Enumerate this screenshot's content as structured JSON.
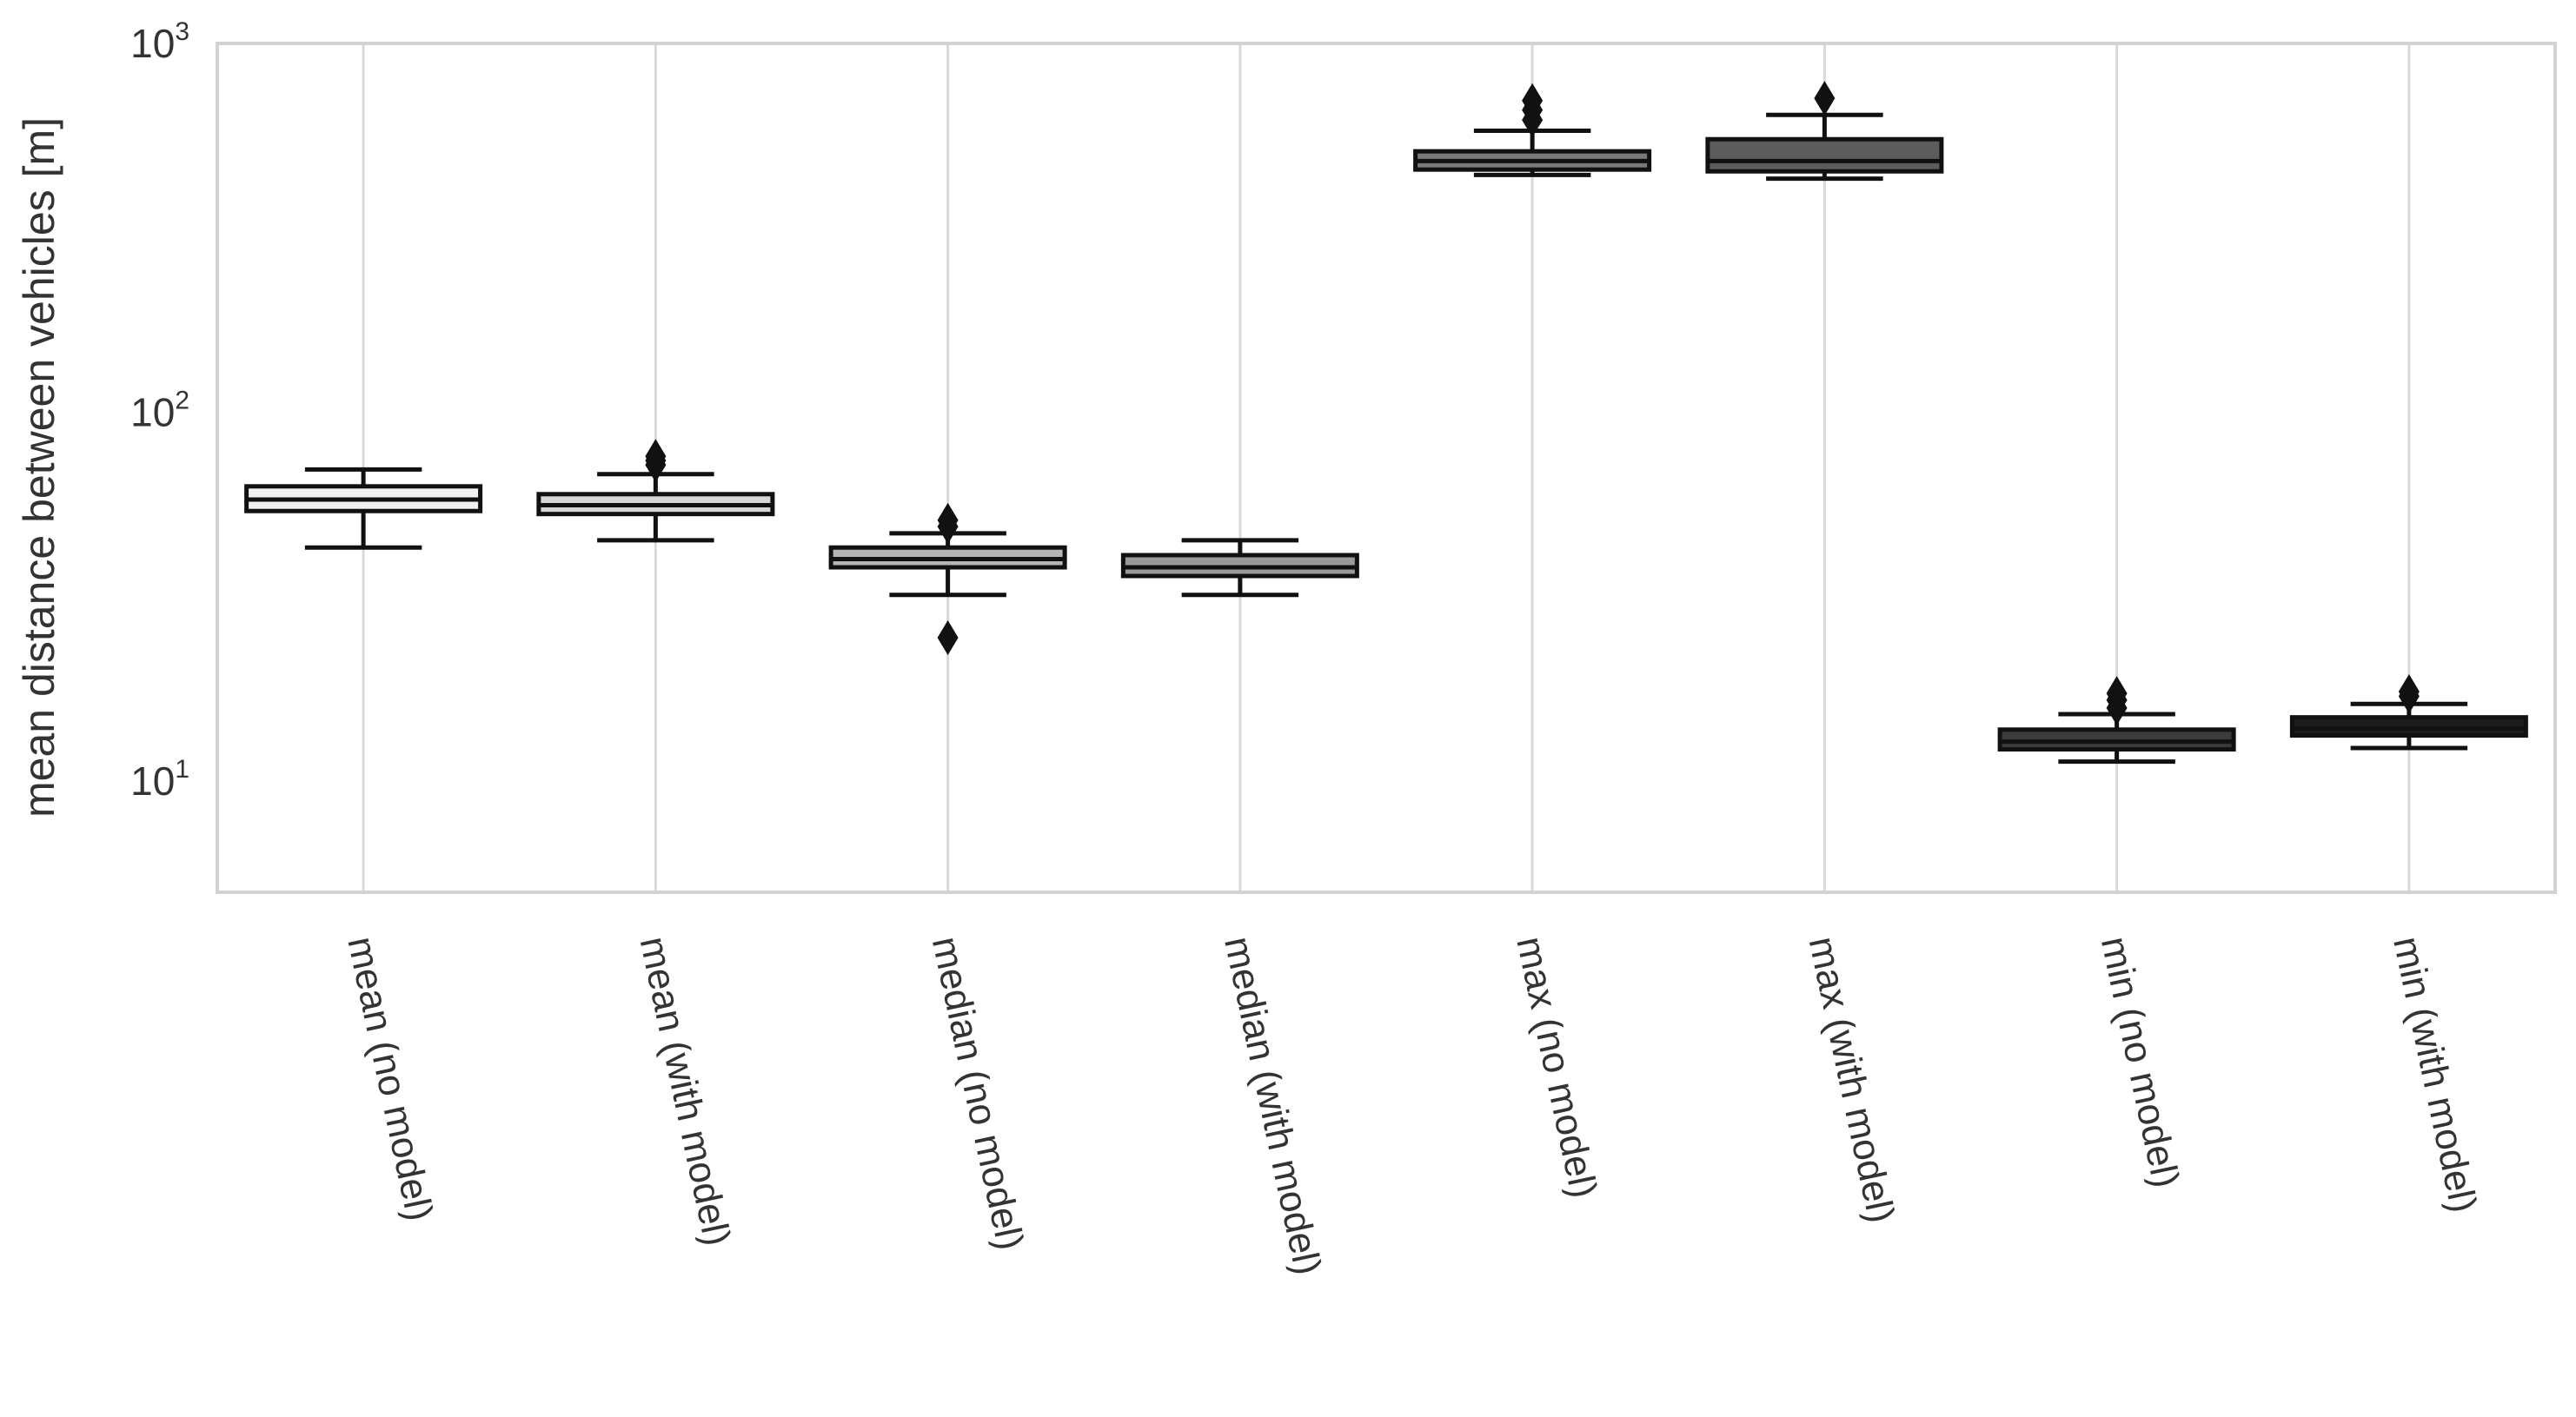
{
  "chart_data": {
    "type": "box",
    "title": "",
    "xlabel": "",
    "ylabel": "mean distance between vehicles [m]",
    "yscale": "log",
    "ylim": [
      5,
      1000
    ],
    "yticks": [
      {
        "value": 10,
        "base": "10",
        "exp": "1"
      },
      {
        "value": 100,
        "base": "10",
        "exp": "2"
      },
      {
        "value": 1000,
        "base": "10",
        "exp": "3"
      }
    ],
    "grid": "vertical",
    "categories": [
      "mean (no model)",
      "mean (with model)",
      "median (no model)",
      "median (with model)",
      "max (no model)",
      "max (with model)",
      "min (no model)",
      "min (with model)"
    ],
    "boxes": [
      {
        "whislo": 43,
        "q1": 54,
        "med": 58,
        "q3": 63,
        "whishi": 70,
        "fliers": [],
        "fill": "#f2f2f2"
      },
      {
        "whislo": 45,
        "q1": 53,
        "med": 56,
        "q3": 60,
        "whishi": 68,
        "fliers": [
          72,
          74,
          76
        ],
        "fill": "#d6d6d6"
      },
      {
        "whislo": 32,
        "q1": 38,
        "med": 40,
        "q3": 43,
        "whishi": 47,
        "fliers": [
          24.5,
          49,
          51
        ],
        "fill": "#b5b5b5"
      },
      {
        "whislo": 32,
        "q1": 36,
        "med": 38,
        "q3": 41,
        "whishi": 45,
        "fliers": [],
        "fill": "#9a9a9a"
      },
      {
        "whislo": 440,
        "q1": 455,
        "med": 480,
        "q3": 510,
        "whishi": 580,
        "fliers": [
          620,
          660,
          700
        ],
        "fill": "#7a7a7a"
      },
      {
        "whislo": 430,
        "q1": 450,
        "med": 480,
        "q3": 550,
        "whishi": 640,
        "fliers": [
          710
        ],
        "fill": "#5c5c5c"
      },
      {
        "whislo": 11.3,
        "q1": 12.2,
        "med": 12.8,
        "q3": 13.8,
        "whishi": 15.2,
        "fliers": [
          15.8,
          16.6,
          17.3
        ],
        "fill": "#3b3b3b"
      },
      {
        "whislo": 12.3,
        "q1": 13.3,
        "med": 13.9,
        "q3": 14.9,
        "whishi": 16.2,
        "fliers": [
          17.0,
          17.5
        ],
        "fill": "#1c1c1c"
      }
    ]
  }
}
